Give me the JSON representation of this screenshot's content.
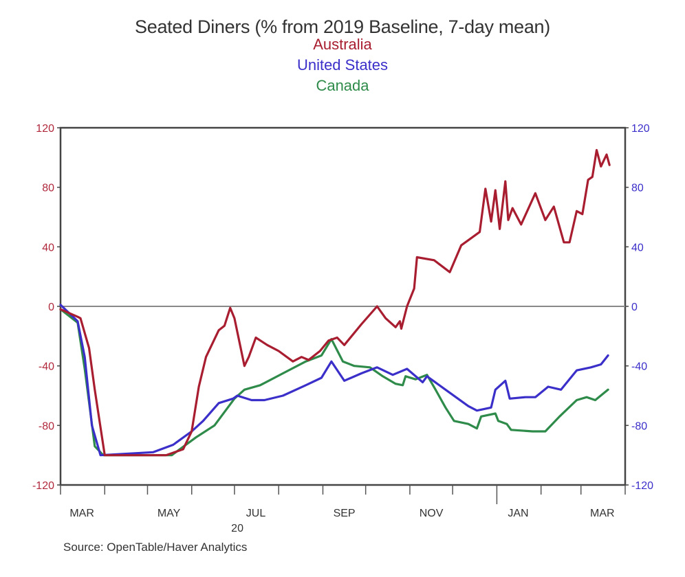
{
  "chart_data": {
    "type": "line",
    "title": "Seated Diners (% from 2019 Baseline, 7-day mean)",
    "x_unit": "days since 2020-03-01",
    "xlim": [
      0,
      396
    ],
    "ylim": [
      -120,
      120
    ],
    "yticks": [
      120,
      80,
      40,
      0,
      -40,
      -80,
      -120
    ],
    "left_axis_color": "#b0283c",
    "right_axis_color": "#3b2fc9",
    "month_ticks": [
      0,
      31,
      61,
      92,
      122,
      153,
      184,
      214,
      245,
      275,
      306,
      337,
      365,
      396
    ],
    "x_tick_labels": [
      {
        "label": "MAR",
        "day": 15
      },
      {
        "label": "MAY",
        "day": 76
      },
      {
        "label": "JUL",
        "day": 137
      },
      {
        "label": "SEP",
        "day": 199
      },
      {
        "label": "NOV",
        "day": 260
      },
      {
        "label": "JAN",
        "day": 321
      },
      {
        "label": "MAR",
        "day": 380
      }
    ],
    "year_label": {
      "label": "20",
      "day": 124
    },
    "legend_placement": "top-center",
    "source": "Source:  OpenTable/Haver Analytics",
    "series": [
      {
        "name": "Australia",
        "color": "#a81e30",
        "points": [
          [
            0,
            -2
          ],
          [
            12,
            -7
          ],
          [
            14,
            -8
          ],
          [
            20,
            -28
          ],
          [
            24,
            -56
          ],
          [
            31,
            -100
          ],
          [
            74,
            -100
          ],
          [
            86,
            -96
          ],
          [
            92,
            -84
          ],
          [
            97,
            -54
          ],
          [
            102,
            -34
          ],
          [
            111,
            -16
          ],
          [
            115,
            -13
          ],
          [
            119,
            -1
          ],
          [
            122,
            -8
          ],
          [
            129,
            -40
          ],
          [
            132,
            -34
          ],
          [
            137,
            -21
          ],
          [
            145,
            -26
          ],
          [
            153,
            -30
          ],
          [
            163,
            -37
          ],
          [
            169,
            -34
          ],
          [
            174,
            -36
          ],
          [
            182,
            -30
          ],
          [
            188,
            -23
          ],
          [
            194,
            -21
          ],
          [
            199,
            -26
          ],
          [
            211,
            -12
          ],
          [
            222,
            0
          ],
          [
            228,
            -8
          ],
          [
            235,
            -14
          ],
          [
            238,
            -10
          ],
          [
            239,
            -15
          ],
          [
            243,
            0
          ],
          [
            248,
            12
          ],
          [
            250,
            33
          ],
          [
            262,
            31
          ],
          [
            273,
            23
          ],
          [
            281,
            41
          ],
          [
            294,
            50
          ],
          [
            298,
            79
          ],
          [
            302,
            57
          ],
          [
            305,
            78
          ],
          [
            308,
            52
          ],
          [
            312,
            84
          ],
          [
            314,
            58
          ],
          [
            317,
            66
          ],
          [
            323,
            55
          ],
          [
            333,
            76
          ],
          [
            340,
            58
          ],
          [
            346,
            67
          ],
          [
            353,
            43
          ],
          [
            357,
            43
          ],
          [
            362,
            64
          ],
          [
            366,
            62
          ],
          [
            370,
            85
          ],
          [
            373,
            87
          ],
          [
            376,
            105
          ],
          [
            379,
            94
          ],
          [
            383,
            102
          ],
          [
            385,
            95
          ]
        ]
      },
      {
        "name": "United States",
        "color": "#3b2fc9",
        "points": [
          [
            0,
            1
          ],
          [
            12,
            -10
          ],
          [
            17,
            -34
          ],
          [
            22,
            -80
          ],
          [
            28,
            -100
          ],
          [
            65,
            -98
          ],
          [
            79,
            -93
          ],
          [
            92,
            -84
          ],
          [
            100,
            -77
          ],
          [
            111,
            -65
          ],
          [
            121,
            -62
          ],
          [
            124,
            -60
          ],
          [
            134,
            -63
          ],
          [
            143,
            -63
          ],
          [
            156,
            -60
          ],
          [
            172,
            -53
          ],
          [
            183,
            -48
          ],
          [
            190,
            -37
          ],
          [
            199,
            -50
          ],
          [
            211,
            -45
          ],
          [
            222,
            -41
          ],
          [
            233,
            -46
          ],
          [
            243,
            -42
          ],
          [
            254,
            -51
          ],
          [
            257,
            -47
          ],
          [
            270,
            -56
          ],
          [
            286,
            -67
          ],
          [
            292,
            -70
          ],
          [
            302,
            -68
          ],
          [
            305,
            -56
          ],
          [
            312,
            -50
          ],
          [
            315,
            -62
          ],
          [
            326,
            -61
          ],
          [
            333,
            -61
          ],
          [
            342,
            -54
          ],
          [
            351,
            -56
          ],
          [
            362,
            -43
          ],
          [
            372,
            -41
          ],
          [
            379,
            -39
          ],
          [
            384,
            -33
          ]
        ]
      },
      {
        "name": "Canada",
        "color": "#2e8b4a",
        "points": [
          [
            0,
            -2
          ],
          [
            12,
            -11
          ],
          [
            17,
            -42
          ],
          [
            24,
            -94
          ],
          [
            30,
            -100
          ],
          [
            78,
            -100
          ],
          [
            95,
            -88
          ],
          [
            108,
            -80
          ],
          [
            122,
            -62
          ],
          [
            129,
            -56
          ],
          [
            140,
            -53
          ],
          [
            156,
            -45
          ],
          [
            172,
            -37
          ],
          [
            183,
            -33
          ],
          [
            190,
            -22
          ],
          [
            198,
            -37
          ],
          [
            206,
            -40
          ],
          [
            217,
            -41
          ],
          [
            226,
            -47
          ],
          [
            235,
            -52
          ],
          [
            240,
            -53
          ],
          [
            242,
            -47
          ],
          [
            249,
            -49
          ],
          [
            257,
            -46
          ],
          [
            263,
            -56
          ],
          [
            270,
            -68
          ],
          [
            276,
            -77
          ],
          [
            286,
            -79
          ],
          [
            292,
            -82
          ],
          [
            295,
            -74
          ],
          [
            305,
            -72
          ],
          [
            307,
            -77
          ],
          [
            313,
            -79
          ],
          [
            316,
            -83
          ],
          [
            331,
            -84
          ],
          [
            340,
            -84
          ],
          [
            350,
            -74
          ],
          [
            362,
            -63
          ],
          [
            369,
            -61
          ],
          [
            375,
            -63
          ],
          [
            384,
            -56
          ]
        ]
      }
    ]
  }
}
